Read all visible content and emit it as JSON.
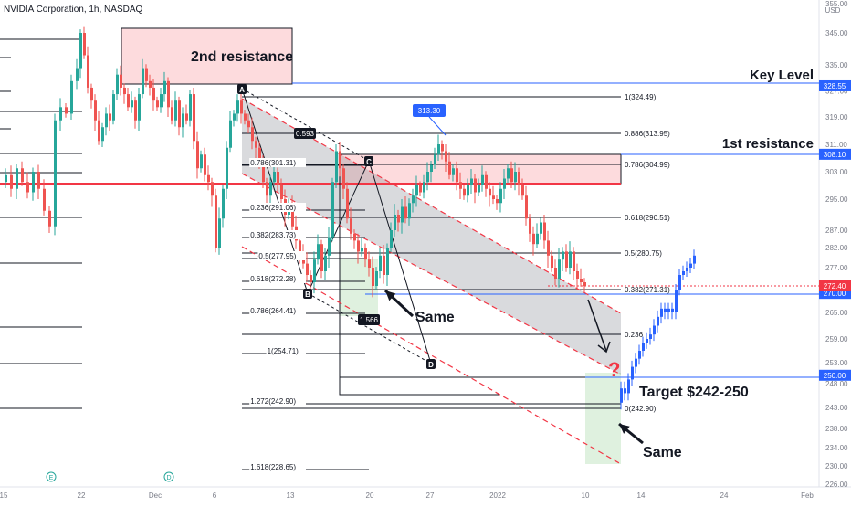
{
  "header": {
    "title": "NVIDIA Corporation, 1h, NASDAQ"
  },
  "chart_data": {
    "type": "candlestick",
    "ylim": [
      226,
      355
    ],
    "currency_label": "USD",
    "y_ticks": [
      355,
      345,
      335,
      327,
      319,
      311,
      303,
      295,
      287,
      282,
      277,
      271,
      265,
      259,
      253,
      248,
      243,
      238,
      234,
      230,
      226
    ],
    "x_ticks": [
      "15",
      "22",
      "Dec",
      "6",
      "13",
      "20",
      "27",
      "2022",
      "10",
      "14",
      "24",
      "Feb"
    ],
    "last_price": "272.40",
    "price_markers": [
      {
        "value": 328.55,
        "label": "328.55"
      },
      {
        "value": 308.1,
        "label": "308.10"
      },
      {
        "value": 270.0,
        "label": "270.00"
      },
      {
        "value": 250.0,
        "label": "250.00"
      }
    ],
    "resistance_boxes": [
      {
        "label": "2nd resistance",
        "top": 346,
        "bottom": 329
      },
      {
        "label": "1st resistance",
        "top": 307,
        "bottom": 301
      }
    ],
    "fib_levels": [
      {
        "ratio": "1",
        "price": "324.49"
      },
      {
        "ratio": "0.886",
        "price": "313.95"
      },
      {
        "ratio": "0.786",
        "price": "304.99"
      },
      {
        "ratio": "0.618",
        "price": "290.51"
      },
      {
        "ratio": "0.5",
        "price": "280.75"
      },
      {
        "ratio": "0.382",
        "price": "271.31"
      },
      {
        "ratio": "0.236",
        "price": ""
      },
      {
        "ratio": "0",
        "price": "242.90"
      }
    ],
    "fib_extension": [
      {
        "ratio": "0.786",
        "price": "301.31"
      },
      {
        "ratio": "0.236",
        "price": "291.06"
      },
      {
        "ratio": "0.382",
        "price": "283.73"
      },
      {
        "ratio": "0.5",
        "price": "277.95"
      },
      {
        "ratio": "0.618",
        "price": "272.28"
      },
      {
        "ratio": "0.786",
        "price": "264.41"
      },
      {
        "ratio": "1",
        "price": "254.71"
      },
      {
        "ratio": "1.272",
        "price": "242.90"
      },
      {
        "ratio": "1.618",
        "price": "228.65"
      }
    ],
    "pattern_points": [
      "A",
      "B",
      "C",
      "D"
    ],
    "pattern_ratios": [
      "0.593",
      "1.566"
    ],
    "callouts": {
      "peak": "313.30",
      "key_level": "Key Level",
      "first_resistance": "1st resistance",
      "second_resistance": "2nd resistance",
      "target": "Target $242-250",
      "same_1": "Same",
      "same_2": "Same",
      "question": "?"
    },
    "earnings_markers": [
      "E",
      "D"
    ]
  }
}
